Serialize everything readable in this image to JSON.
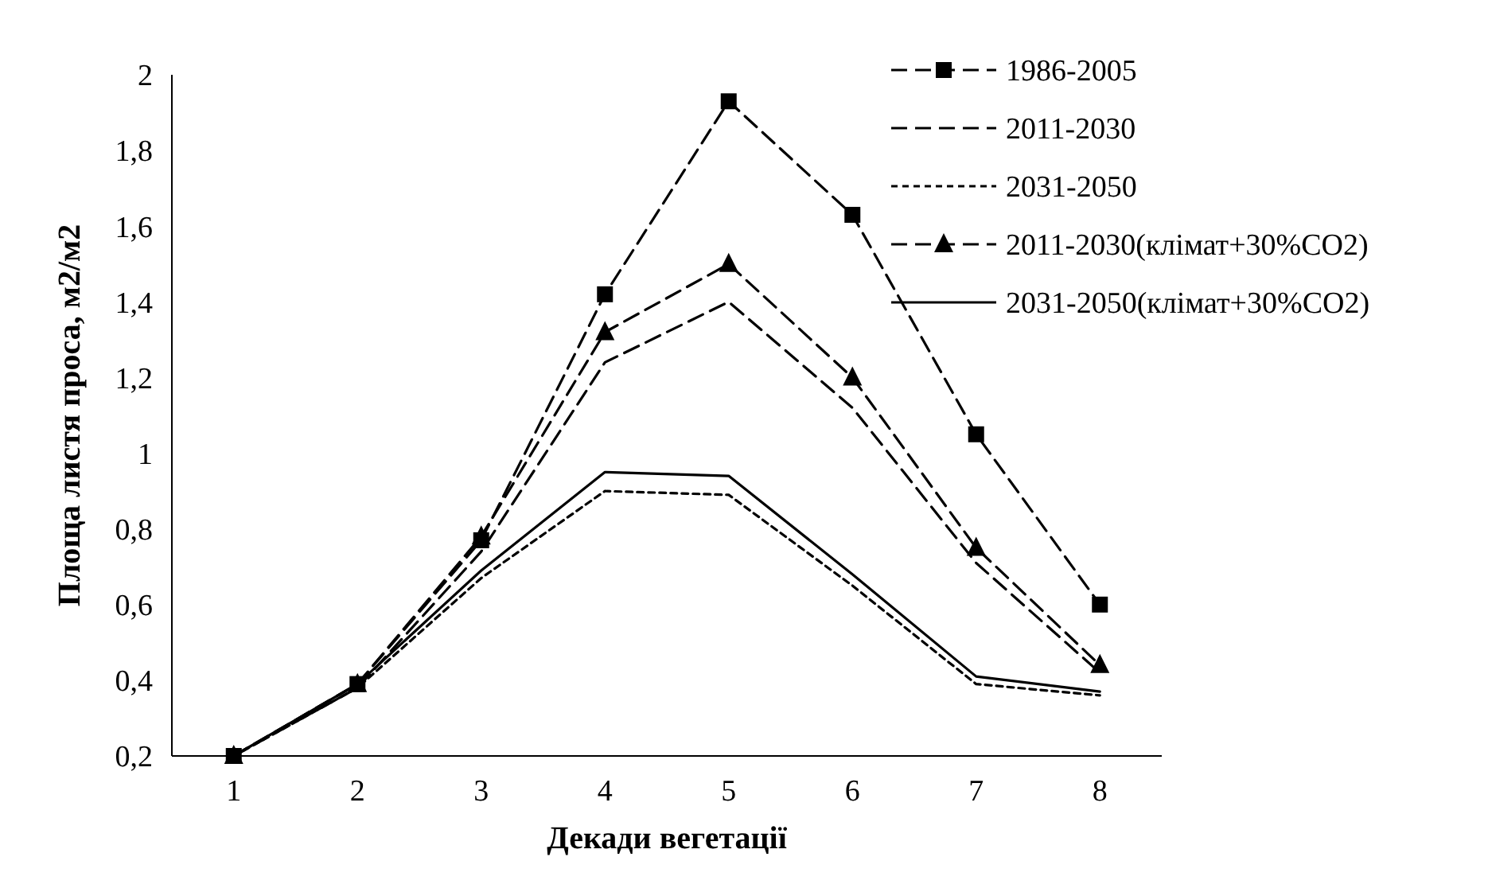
{
  "chart_data": {
    "type": "line",
    "xlabel": "Декади вегетації",
    "ylabel": "Площа листя проса, м2/м2",
    "categories": [
      "1",
      "2",
      "3",
      "4",
      "5",
      "6",
      "7",
      "8"
    ],
    "ylim": [
      0.2,
      2
    ],
    "yticks": [
      {
        "value": 0.2,
        "label": "0,2"
      },
      {
        "value": 0.4,
        "label": "0,4"
      },
      {
        "value": 0.6,
        "label": "0,6"
      },
      {
        "value": 0.8,
        "label": "0,8"
      },
      {
        "value": 1,
        "label": "1"
      },
      {
        "value": 1.2,
        "label": "1,2"
      },
      {
        "value": 1.4,
        "label": "1,4"
      },
      {
        "value": 1.6,
        "label": "1,6"
      },
      {
        "value": 1.8,
        "label": "1,8"
      },
      {
        "value": 2,
        "label": "2"
      }
    ],
    "grid": false,
    "legend": "top right",
    "series": [
      {
        "name": "1986-2005",
        "color": "#000000",
        "marker": "square",
        "line_style": "dashed",
        "values": [
          0.2,
          0.39,
          0.77,
          1.42,
          1.93,
          1.63,
          1.05,
          0.6
        ]
      },
      {
        "name": "2011-2030",
        "color": "#000000",
        "marker": "none",
        "line_style": "dashed",
        "values": [
          0.2,
          0.38,
          0.74,
          1.24,
          1.4,
          1.12,
          0.71,
          0.42
        ]
      },
      {
        "name": "2031-2050",
        "color": "#000000",
        "marker": "none",
        "line_style": "dotted",
        "values": [
          0.2,
          0.38,
          0.67,
          0.9,
          0.89,
          0.65,
          0.39,
          0.36
        ]
      },
      {
        "name": "2011-2030(клімат+30%CO2)",
        "color": "#000000",
        "marker": "triangle",
        "line_style": "dashed",
        "values": [
          0.2,
          0.39,
          0.78,
          1.32,
          1.5,
          1.2,
          0.75,
          0.44
        ]
      },
      {
        "name": "2031-2050(клімат+30%CO2)",
        "color": "#000000",
        "marker": "none",
        "line_style": "solid",
        "values": [
          0.2,
          0.39,
          0.69,
          0.95,
          0.94,
          0.68,
          0.41,
          0.37
        ]
      }
    ]
  }
}
